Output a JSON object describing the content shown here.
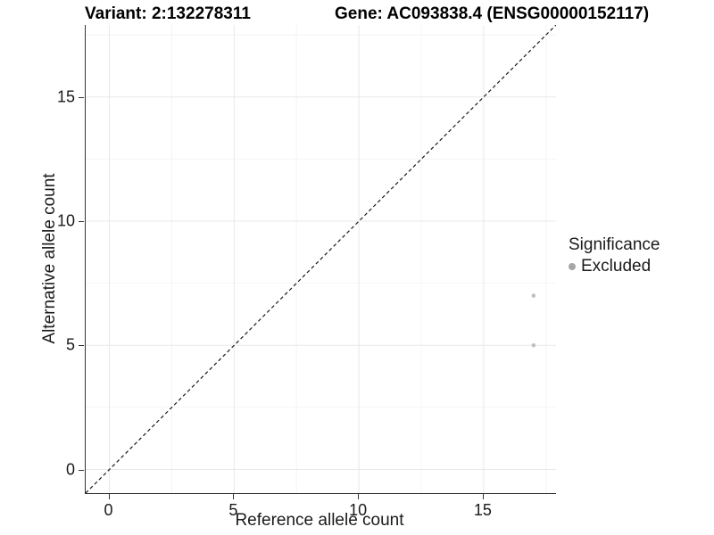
{
  "titles": {
    "variant": "Variant: 2:132278311",
    "gene": "Gene: AC093838.4 (ENSG00000152117)"
  },
  "chart_data": {
    "type": "scatter",
    "xlabel": "Reference allele count",
    "ylabel": "Alternative allele count",
    "xlim": [
      -0.95,
      17.9
    ],
    "ylim": [
      -0.95,
      17.9
    ],
    "x_major_ticks": [
      0,
      5,
      10,
      15
    ],
    "y_major_ticks": [
      0,
      5,
      10,
      15
    ],
    "x_minor_ticks": [
      2.5,
      7.5,
      12.5,
      17.5
    ],
    "y_minor_ticks": [
      2.5,
      7.5,
      12.5,
      17.5
    ],
    "grid": "on",
    "legend_position": "right",
    "series": [
      {
        "name": "Excluded",
        "points": [
          {
            "x": 17,
            "y": 7
          },
          {
            "x": 17,
            "y": 5
          }
        ]
      }
    ],
    "reference_line": {
      "type": "identity",
      "slope": 1,
      "intercept": 0,
      "style": "dashed"
    },
    "legend": {
      "title": "Significance",
      "entries": [
        {
          "label": "Excluded"
        }
      ]
    },
    "style": {
      "point_color": "#c0c0c0",
      "legend_point_color": "#a6a6a6",
      "grid_major_color": "#e8e8e8",
      "grid_minor_color": "#f4f4f4",
      "axis_line_color": "#333333",
      "dashed_line_color": "#1a1a1a",
      "point_radius": 2.3
    }
  }
}
